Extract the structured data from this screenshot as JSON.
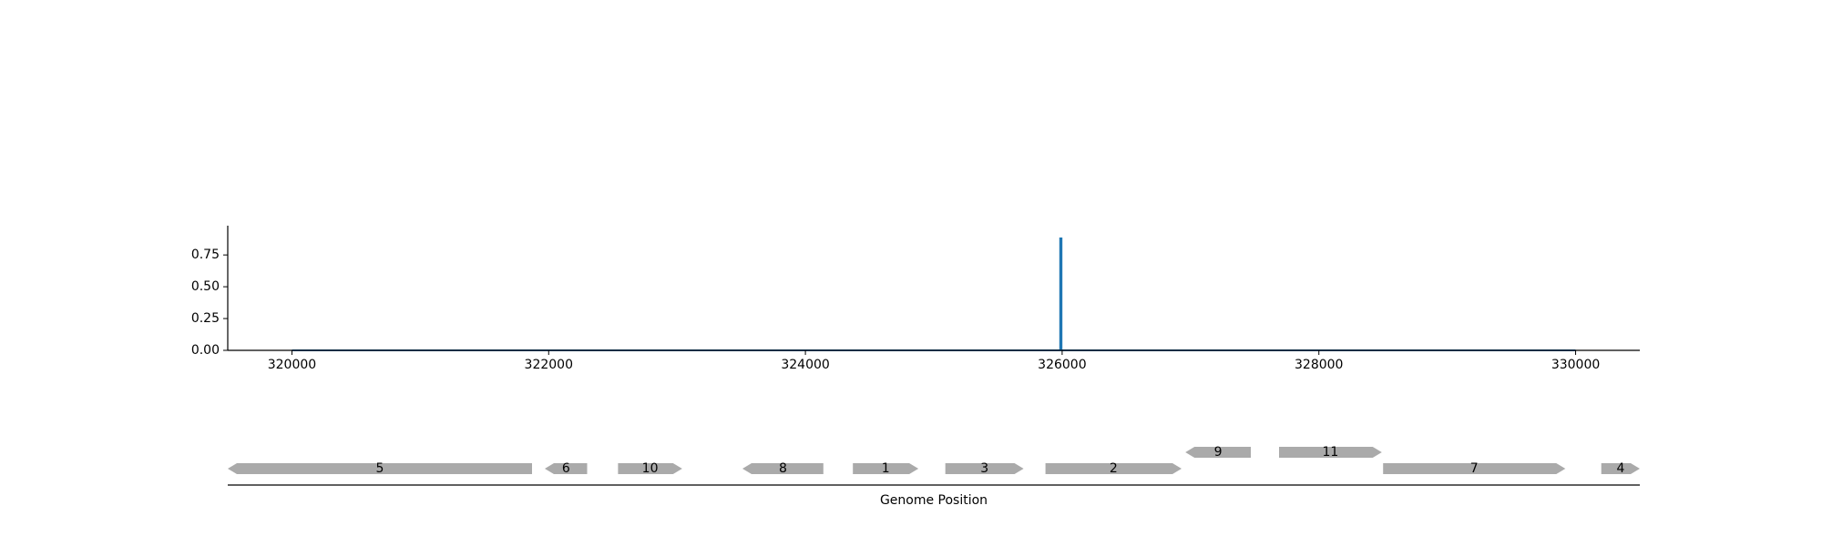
{
  "chart_data": [
    {
      "type": "line",
      "title": "",
      "xlabel": "",
      "ylabel": "",
      "xlim": [
        319500,
        330500
      ],
      "ylim": [
        0,
        0.98
      ],
      "xticks": [
        320000,
        322000,
        324000,
        326000,
        328000,
        330000
      ],
      "yticks": [
        0.0,
        0.25,
        0.5,
        0.75
      ],
      "ytick_labels": [
        "0.00",
        "0.25",
        "0.50",
        "0.75"
      ],
      "grid": false,
      "series": [
        {
          "color": "#1f77b4",
          "x": [
            320000,
            325985,
            325985,
            325995,
            325995,
            330000
          ],
          "y": [
            0,
            0,
            0.88,
            0.88,
            0,
            0
          ]
        }
      ]
    },
    {
      "type": "gene-track",
      "xlabel": "Genome Position",
      "xlim": [
        319500,
        330500
      ],
      "feature_color": "#aaaaaa",
      "features": [
        {
          "label": "5",
          "start": 319500,
          "end": 321870,
          "strand": -1,
          "row": 0
        },
        {
          "label": "6",
          "start": 321970,
          "end": 322300,
          "strand": -1,
          "row": 0
        },
        {
          "label": "10",
          "start": 322540,
          "end": 323040,
          "strand": 1,
          "row": 0
        },
        {
          "label": "8",
          "start": 323510,
          "end": 324140,
          "strand": -1,
          "row": 0
        },
        {
          "label": "1",
          "start": 324370,
          "end": 324880,
          "strand": 1,
          "row": 0
        },
        {
          "label": "3",
          "start": 325090,
          "end": 325700,
          "strand": 1,
          "row": 0
        },
        {
          "label": "2",
          "start": 325870,
          "end": 326930,
          "strand": 1,
          "row": 0
        },
        {
          "label": "9",
          "start": 326960,
          "end": 327470,
          "strand": -1,
          "row": 1
        },
        {
          "label": "11",
          "start": 327690,
          "end": 328490,
          "strand": 1,
          "row": 1
        },
        {
          "label": "7",
          "start": 328500,
          "end": 329920,
          "strand": 1,
          "row": 0
        },
        {
          "label": "4",
          "start": 330200,
          "end": 330500,
          "strand": 1,
          "row": 0
        }
      ]
    }
  ]
}
